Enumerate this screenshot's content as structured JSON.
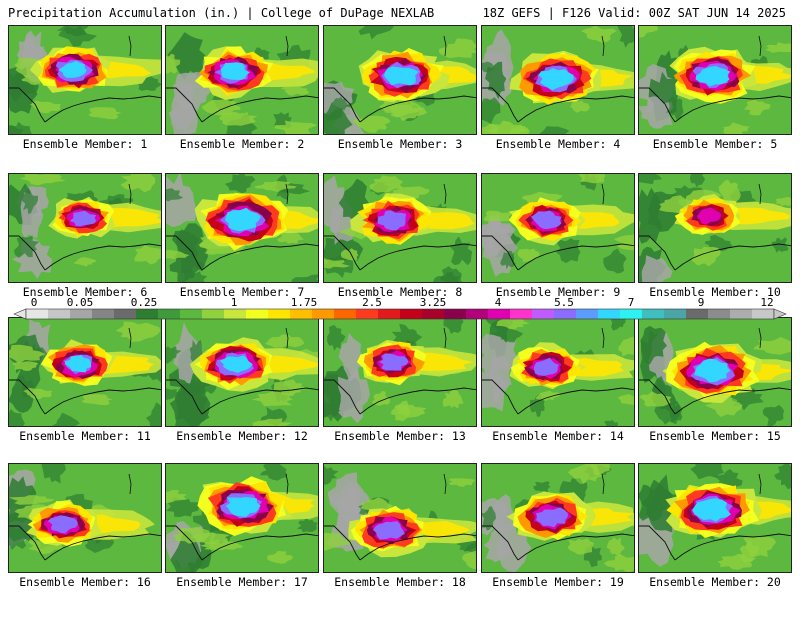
{
  "header": {
    "left_title": "Precipitation Accumulation (in.) | College of DuPage NEXLAB",
    "right_title": "18Z GEFS | F126 Valid: 00Z SAT JUN 14 2025"
  },
  "members": [
    {
      "label": "Ensemble Member: 1",
      "bullseye": [
        0.42,
        0.4
      ],
      "size": 0.22,
      "max_level": 15
    },
    {
      "label": "Ensemble Member: 2",
      "bullseye": [
        0.44,
        0.42
      ],
      "size": 0.22,
      "max_level": 15
    },
    {
      "label": "Ensemble Member: 3",
      "bullseye": [
        0.5,
        0.45
      ],
      "size": 0.24,
      "max_level": 15
    },
    {
      "label": "Ensemble Member: 4",
      "bullseye": [
        0.48,
        0.48
      ],
      "size": 0.24,
      "max_level": 14
    },
    {
      "label": "Ensemble Member: 5",
      "bullseye": [
        0.48,
        0.45
      ],
      "size": 0.24,
      "max_level": 14
    },
    {
      "label": "Ensemble Member: 6",
      "bullseye": [
        0.48,
        0.4
      ],
      "size": 0.18,
      "max_level": 13
    },
    {
      "label": "Ensemble Member: 7",
      "bullseye": [
        0.5,
        0.42
      ],
      "size": 0.26,
      "max_level": 14
    },
    {
      "label": "Ensemble Member: 8",
      "bullseye": [
        0.45,
        0.42
      ],
      "size": 0.22,
      "max_level": 13
    },
    {
      "label": "Ensemble Member: 9",
      "bullseye": [
        0.42,
        0.42
      ],
      "size": 0.2,
      "max_level": 13
    },
    {
      "label": "Ensemble Member: 10",
      "bullseye": [
        0.45,
        0.38
      ],
      "size": 0.18,
      "max_level": 12
    },
    {
      "label": "Ensemble Member: 11",
      "bullseye": [
        0.45,
        0.42
      ],
      "size": 0.2,
      "max_level": 14
    },
    {
      "label": "Ensemble Member: 12",
      "bullseye": [
        0.45,
        0.42
      ],
      "size": 0.22,
      "max_level": 14
    },
    {
      "label": "Ensemble Member: 13",
      "bullseye": [
        0.45,
        0.4
      ],
      "size": 0.2,
      "max_level": 13
    },
    {
      "label": "Ensemble Member: 14",
      "bullseye": [
        0.42,
        0.45
      ],
      "size": 0.2,
      "max_level": 13
    },
    {
      "label": "Ensemble Member: 15",
      "bullseye": [
        0.48,
        0.48
      ],
      "size": 0.26,
      "max_level": 14
    },
    {
      "label": "Ensemble Member: 16",
      "bullseye": [
        0.35,
        0.55
      ],
      "size": 0.2,
      "max_level": 13
    },
    {
      "label": "Ensemble Member: 17",
      "bullseye": [
        0.5,
        0.38
      ],
      "size": 0.26,
      "max_level": 14
    },
    {
      "label": "Ensemble Member: 18",
      "bullseye": [
        0.42,
        0.6
      ],
      "size": 0.22,
      "max_level": 13
    },
    {
      "label": "Ensemble Member: 19",
      "bullseye": [
        0.45,
        0.48
      ],
      "size": 0.22,
      "max_level": 13
    },
    {
      "label": "Ensemble Member: 20",
      "bullseye": [
        0.48,
        0.42
      ],
      "size": 0.26,
      "max_level": 15
    }
  ],
  "colorbar": {
    "labels": [
      "0",
      "0.05",
      "0.25",
      "1",
      "1.75",
      "2.5",
      "3.25",
      "4",
      "5.5",
      "7",
      "9",
      "12"
    ],
    "colors": [
      "#e6e6e6",
      "#c6c6c6",
      "#a6a6a6",
      "#858585",
      "#6b6b6b",
      "#2e7d32",
      "#3f9a3c",
      "#5cb83f",
      "#8fd13f",
      "#c8e63c",
      "#f2ff1f",
      "#ffe600",
      "#ffbf00",
      "#ff9900",
      "#ff6600",
      "#ff3b1f",
      "#e31a1c",
      "#c4001a",
      "#a8002a",
      "#8b004b",
      "#b0007a",
      "#e000b0",
      "#ff33cc",
      "#c05cff",
      "#8a6cff",
      "#5c9cff",
      "#33d6ff",
      "#2ef2f2",
      "#3fbfbf",
      "#4aa6a6",
      "#6b6b6b",
      "#8c8c8c",
      "#adadad",
      "#c8c8c8"
    ]
  }
}
